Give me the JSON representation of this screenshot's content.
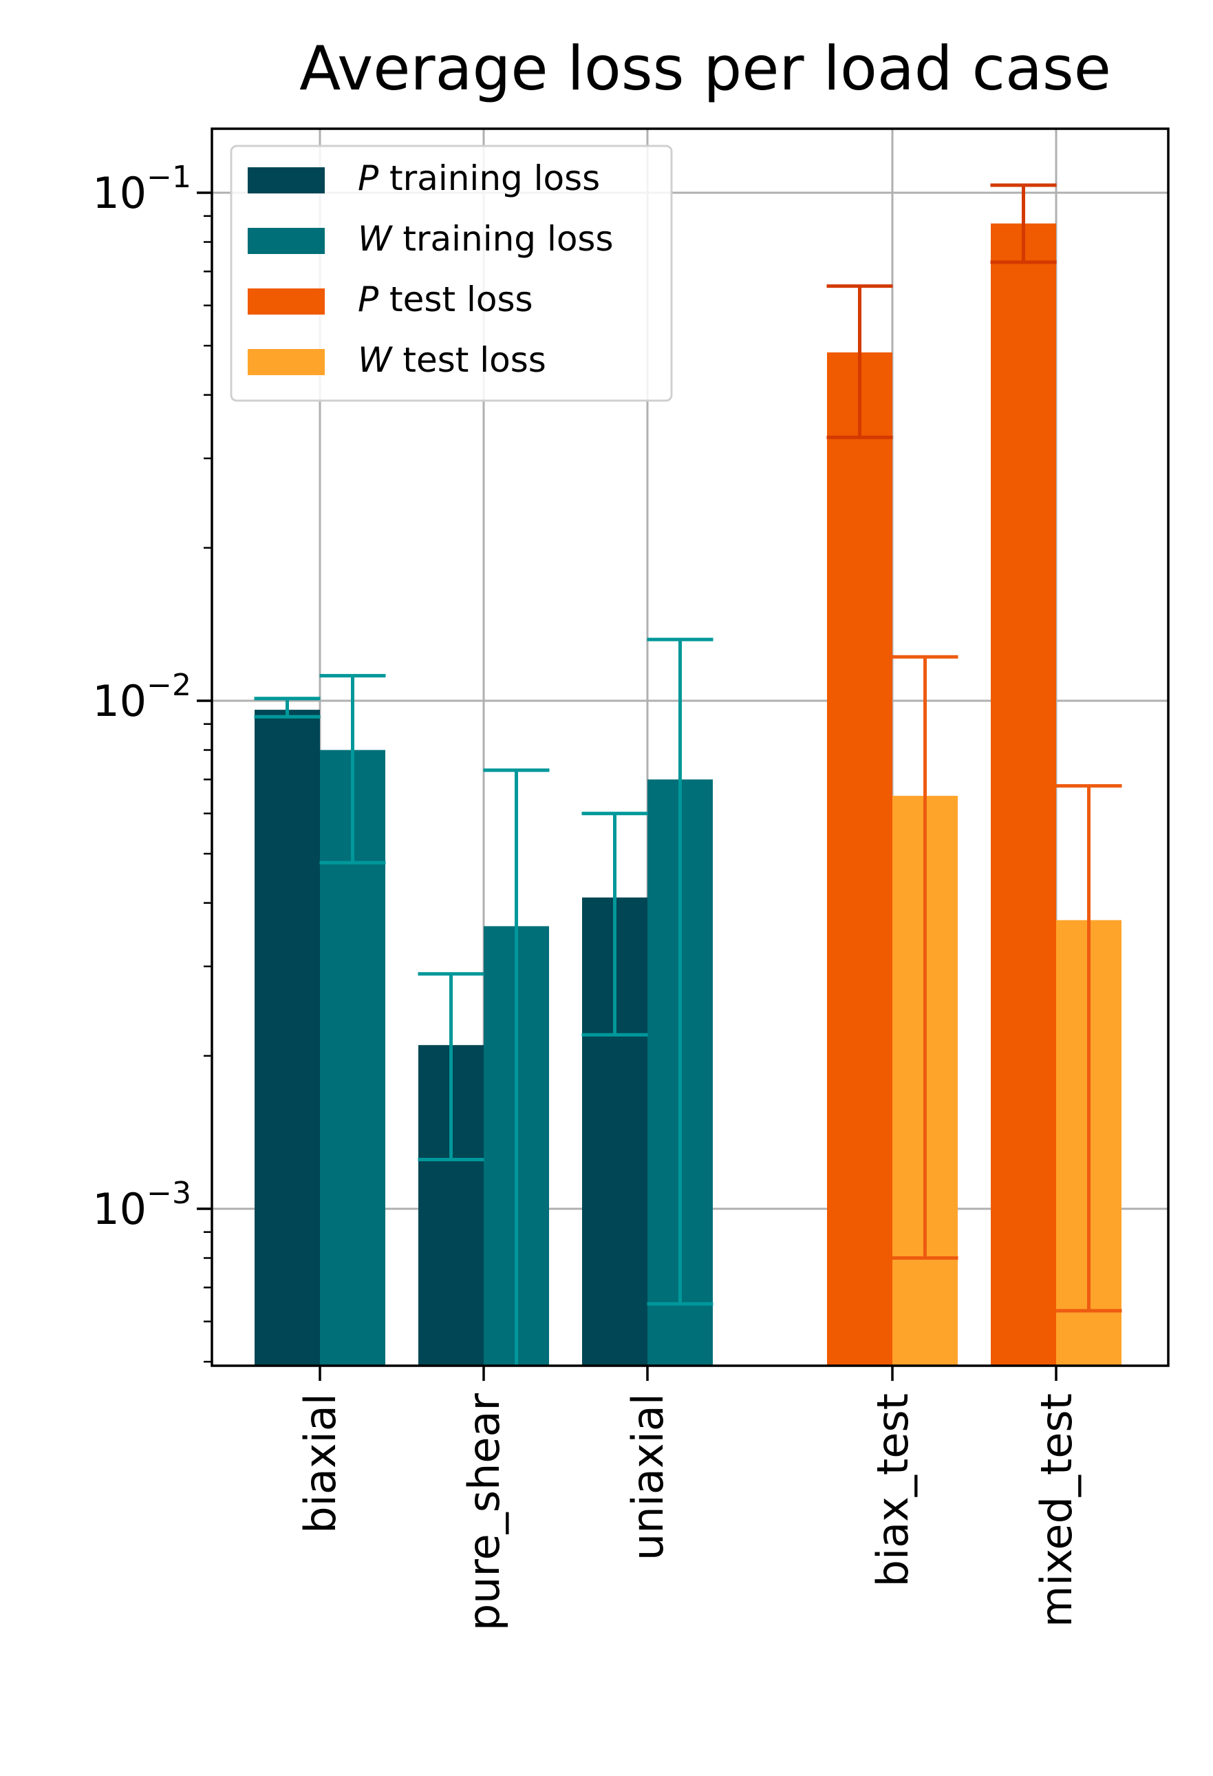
{
  "chart_data": {
    "type": "bar",
    "title": "Average loss per load case",
    "xlabel": "",
    "ylabel": "",
    "yscale": "log",
    "ylim": [
      0.00049,
      0.13
    ],
    "y_ticks": [
      {
        "value": 0.1,
        "base": "10",
        "exp": "−1"
      },
      {
        "value": 0.01,
        "base": "10",
        "exp": "−2"
      },
      {
        "value": 0.001,
        "base": "10",
        "exp": "−3"
      }
    ],
    "grid": true,
    "legend_position": "top-left",
    "categories": [
      "biaxial",
      "pure_shear",
      "uniaxial",
      "biax_test",
      "mixed_test"
    ],
    "series": [
      {
        "name": "P training loss",
        "symbol": "P",
        "label": " training loss",
        "color": "#004654",
        "error_color": "#00989a",
        "values": [
          0.0096,
          0.0021,
          0.0041,
          null,
          null
        ],
        "err_low": [
          0.0093,
          0.00125,
          0.0022,
          null,
          null
        ],
        "err_high": [
          0.0101,
          0.0029,
          0.006,
          null,
          null
        ]
      },
      {
        "name": "W training loss",
        "symbol": "W",
        "label": " training loss",
        "color": "#006f78",
        "error_color": "#00989a",
        "values": [
          0.008,
          0.0036,
          0.007,
          null,
          null
        ],
        "err_low": [
          0.0048,
          0.00049,
          0.00065,
          null,
          null
        ],
        "err_high": [
          0.0112,
          0.0073,
          0.0132,
          null,
          null
        ]
      },
      {
        "name": "P test loss",
        "symbol": "P",
        "label": " test loss",
        "color": "#f05a00",
        "error_color": "#d33a00",
        "values": [
          null,
          null,
          null,
          0.0485,
          0.087
        ],
        "err_low": [
          null,
          null,
          null,
          0.033,
          0.073
        ],
        "err_high": [
          null,
          null,
          null,
          0.0655,
          0.1035
        ]
      },
      {
        "name": "W test loss",
        "symbol": "W",
        "label": " test loss",
        "color": "#ffa42b",
        "error_color": "#ee5b10",
        "values": [
          null,
          null,
          null,
          0.0065,
          0.0037
        ],
        "err_low": [
          null,
          null,
          null,
          0.0008,
          0.00063
        ],
        "err_high": [
          null,
          null,
          null,
          0.0122,
          0.0068
        ]
      }
    ]
  }
}
